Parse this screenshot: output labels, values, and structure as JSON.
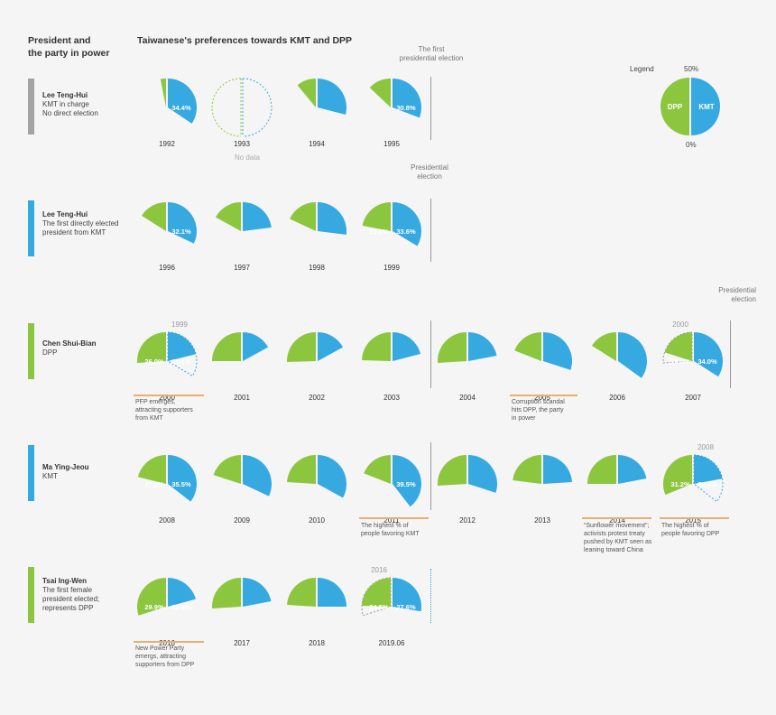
{
  "header": {
    "left_title": [
      "President and",
      "the party in power"
    ],
    "chart_title": "Taiwanese's preferences towards KMT and DPP"
  },
  "annotations": {
    "first_election": [
      "The first",
      "presidential election"
    ],
    "pres_election_1": [
      "Presidential",
      "election"
    ],
    "pres_election_2": [
      "Presidential",
      "election"
    ]
  },
  "legend": {
    "title": "Legend",
    "top_label": "50%",
    "bottom_label": "0%",
    "dpp": "DPP",
    "kmt": "KMT"
  },
  "colors": {
    "dpp": "#8cc63f",
    "kmt": "#36a9e1",
    "note": "#e8b06e"
  },
  "presidents": [
    {
      "name": "Lee Teng-Hui",
      "desc": [
        "KMT in charge",
        "No direct election"
      ],
      "party": "KMT",
      "bar_color": "#a3a3a3"
    },
    {
      "name": "Lee Teng-Hui",
      "desc": [
        "The first directly elected",
        "president from KMT"
      ],
      "party": "KMT",
      "bar_color": "#36a9e1"
    },
    {
      "name": "Chen Shui-Bian",
      "desc": [
        "DPP"
      ],
      "party": "DPP",
      "bar_color": "#8cc63f"
    },
    {
      "name": "Ma Ying-Jeou",
      "desc": [
        "KMT"
      ],
      "party": "KMT",
      "bar_color": "#36a9e1"
    },
    {
      "name": "Tsai Ing-Wen",
      "desc": [
        "The first female",
        "president elected;",
        "represents DPP"
      ],
      "party": "DPP",
      "bar_color": "#8cc63f"
    }
  ],
  "notes": {
    "2000": [
      "PFP emerges,",
      "attracting supporters",
      "from KMT"
    ],
    "2005": [
      "Corruption scandal",
      "hits DPP, the party",
      "in power"
    ],
    "2011": [
      "The highest % of",
      "people favoring KMT"
    ],
    "2014": [
      "“Sunflower movement”;",
      "activists protest treaty",
      "pushed by KMT seen as",
      "leaning toward China"
    ],
    "2015": [
      "The highest % of",
      "people favoring DPP"
    ],
    "2016": [
      "New Power Party",
      "emergs, attracting",
      "supporters from DPP"
    ]
  },
  "no_data_label": "No data",
  "chart_data": {
    "type": "semicircle-pairs",
    "title": "Taiwanese's preferences towards KMT and DPP",
    "scale": {
      "min": 0,
      "max": 50,
      "unit": "%"
    },
    "series": [
      {
        "name": "DPP",
        "color": "#8cc63f"
      },
      {
        "name": "KMT",
        "color": "#36a9e1"
      }
    ],
    "years": [
      {
        "year": "1992",
        "dpp": 3.1,
        "kmt": 34.4,
        "kmt_label": "34.4%"
      },
      {
        "year": "1993",
        "dpp": null,
        "kmt": null,
        "no_data": true
      },
      {
        "year": "1994",
        "dpp": 11.0,
        "kmt": 29.0
      },
      {
        "year": "1995",
        "dpp": 13.0,
        "kmt": 30.8,
        "kmt_label": "30.8%"
      },
      {
        "year": "1996",
        "dpp": 16.0,
        "kmt": 32.1,
        "kmt_label": "32.1%"
      },
      {
        "year": "1997",
        "dpp": 17.0,
        "kmt": 23.0
      },
      {
        "year": "1998",
        "dpp": 18.0,
        "kmt": 27.0
      },
      {
        "year": "1999",
        "dpp": 22.0,
        "kmt": 33.6,
        "dpp_label": "22.0%",
        "kmt_label": "33.6%"
      },
      {
        "year": "2000",
        "dpp": 26.0,
        "kmt": 21.1,
        "dpp_label": "26.0%",
        "kmt_label": "21.1%",
        "ref": {
          "year": "1999",
          "kmt": 33.6
        }
      },
      {
        "year": "2001",
        "dpp": 25.0,
        "kmt": 17.0
      },
      {
        "year": "2002",
        "dpp": 25.5,
        "kmt": 17.0
      },
      {
        "year": "2003",
        "dpp": 24.5,
        "kmt": 21.0
      },
      {
        "year": "2004",
        "dpp": 26.0,
        "kmt": 22.0
      },
      {
        "year": "2005",
        "dpp": 19.0,
        "kmt": 30.0
      },
      {
        "year": "2006",
        "dpp": 16.0,
        "kmt": 35.0
      },
      {
        "year": "2007",
        "dpp": 20.1,
        "kmt": 34.0,
        "dpp_label": "20.1%",
        "kmt_label": "34.0%",
        "ref": {
          "year": "2000",
          "dpp": 26.0
        }
      },
      {
        "year": "2008",
        "dpp": 21.2,
        "kmt": 35.5,
        "dpp_label": "21.2%",
        "kmt_label": "35.5%"
      },
      {
        "year": "2009",
        "dpp": 20.0,
        "kmt": 32.0
      },
      {
        "year": "2010",
        "dpp": 24.0,
        "kmt": 33.0
      },
      {
        "year": "2011",
        "dpp": 19.0,
        "kmt": 39.5,
        "kmt_label": "39.5%"
      },
      {
        "year": "2012",
        "dpp": 26.0,
        "kmt": 30.0
      },
      {
        "year": "2013",
        "dpp": 23.0,
        "kmt": 24.0
      },
      {
        "year": "2014",
        "dpp": 25.0,
        "kmt": 22.0
      },
      {
        "year": "2015",
        "dpp": 31.2,
        "kmt": 22.1,
        "dpp_label": "31.2%",
        "kmt_label": "22.1%",
        "ref": {
          "year": "2008",
          "kmt": 35.5
        }
      },
      {
        "year": "2016",
        "dpp": 29.9,
        "kmt": 20.8,
        "dpp_label": "29.9%",
        "kmt_label": "20.8%"
      },
      {
        "year": "2017",
        "dpp": 26.0,
        "kmt": 22.0
      },
      {
        "year": "2018",
        "dpp": 24.0,
        "kmt": 25.0
      },
      {
        "year": "2019.06",
        "dpp": 24.5,
        "kmt": 27.6,
        "dpp_label": "24.5%",
        "kmt_label": "27.6%",
        "ref": {
          "year": "2016",
          "dpp": 29.9
        }
      }
    ]
  }
}
